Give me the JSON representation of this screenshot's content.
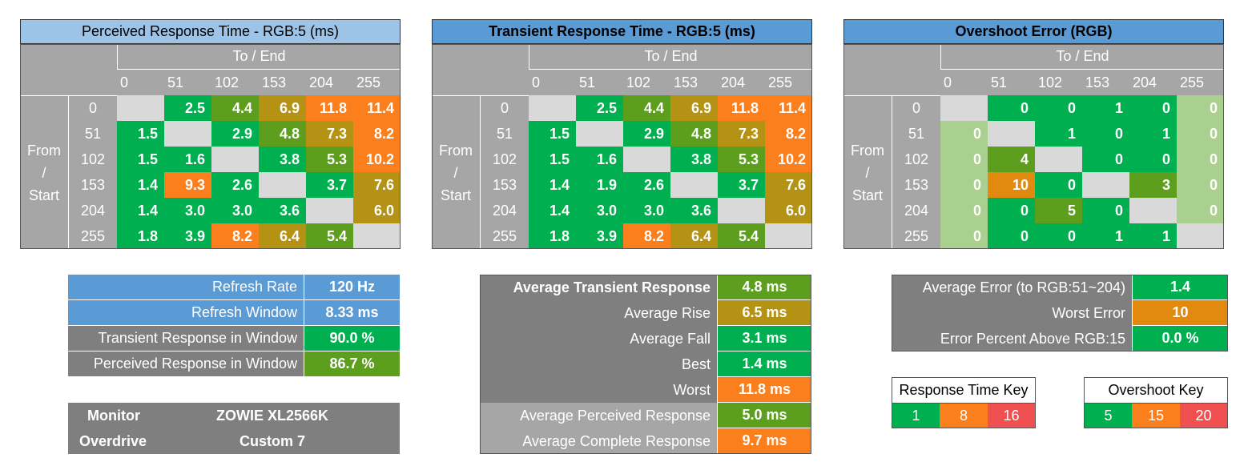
{
  "colors": {
    "green": "#00b050",
    "yellowgreen": "#5d9e1f",
    "olive": "#b39214",
    "orange": "#fb7f1c",
    "diag": "#d9d9d9",
    "light_green": "#a9d08e",
    "blue_light": "#9dc3e6",
    "blue": "#5b9bd5",
    "gray_header": "#a6a6a6",
    "gray_dark": "#7f7f7f",
    "red_key": "#f05050",
    "overshoot_orange": "#e28a10"
  },
  "tables": [
    {
      "title": "Perceived Response Time - RGB:5 (ms)",
      "title_bold": false,
      "title_bg": "#9dc3e6",
      "col_header": "To / End",
      "row_header": [
        "From",
        "/",
        "Start"
      ],
      "levels": [
        "0",
        "51",
        "102",
        "153",
        "204",
        "255"
      ],
      "cells": [
        [
          "",
          "2.5",
          "4.4",
          "6.9",
          "11.8",
          "11.4"
        ],
        [
          "1.5",
          "",
          "2.9",
          "4.8",
          "7.3",
          "8.2"
        ],
        [
          "1.5",
          "1.6",
          "",
          "3.8",
          "5.3",
          "10.2"
        ],
        [
          "1.4",
          "9.3",
          "2.6",
          "",
          "3.7",
          "7.6"
        ],
        [
          "1.4",
          "3.0",
          "3.0",
          "3.6",
          "",
          "6.0"
        ],
        [
          "1.8",
          "3.9",
          "8.2",
          "6.4",
          "5.4",
          ""
        ]
      ],
      "colors": [
        [
          "diag",
          "green",
          "yellowgreen",
          "olive",
          "orange",
          "orange"
        ],
        [
          "green",
          "diag",
          "green",
          "yellowgreen",
          "olive",
          "orange"
        ],
        [
          "green",
          "green",
          "diag",
          "green",
          "yellowgreen",
          "orange"
        ],
        [
          "green",
          "orange",
          "green",
          "diag",
          "green",
          "olive"
        ],
        [
          "green",
          "green",
          "green",
          "green",
          "diag",
          "olive"
        ],
        [
          "green",
          "green",
          "orange",
          "olive",
          "yellowgreen",
          "diag"
        ]
      ]
    },
    {
      "title": "Transient Response Time - RGB:5 (ms)",
      "title_bold": true,
      "title_bg": "#5b9bd5",
      "col_header": "To / End",
      "row_header": [
        "From",
        "/",
        "Start"
      ],
      "levels": [
        "0",
        "51",
        "102",
        "153",
        "204",
        "255"
      ],
      "cells": [
        [
          "",
          "2.5",
          "4.4",
          "6.9",
          "11.8",
          "11.4"
        ],
        [
          "1.5",
          "",
          "2.9",
          "4.8",
          "7.3",
          "8.2"
        ],
        [
          "1.5",
          "1.6",
          "",
          "3.8",
          "5.3",
          "10.2"
        ],
        [
          "1.4",
          "1.9",
          "2.6",
          "",
          "3.7",
          "7.6"
        ],
        [
          "1.4",
          "3.0",
          "3.0",
          "3.6",
          "",
          "6.0"
        ],
        [
          "1.8",
          "3.9",
          "8.2",
          "6.4",
          "5.4",
          ""
        ]
      ],
      "colors": [
        [
          "diag",
          "green",
          "yellowgreen",
          "olive",
          "orange",
          "orange"
        ],
        [
          "green",
          "diag",
          "green",
          "yellowgreen",
          "olive",
          "orange"
        ],
        [
          "green",
          "green",
          "diag",
          "green",
          "yellowgreen",
          "orange"
        ],
        [
          "green",
          "green",
          "green",
          "diag",
          "green",
          "olive"
        ],
        [
          "green",
          "green",
          "green",
          "green",
          "diag",
          "olive"
        ],
        [
          "green",
          "green",
          "orange",
          "olive",
          "yellowgreen",
          "diag"
        ]
      ]
    },
    {
      "title": "Overshoot Error (RGB)",
      "title_bold": true,
      "title_bg": "#5b9bd5",
      "col_header": "To / End",
      "row_header": [
        "From",
        "/",
        "Start"
      ],
      "levels": [
        "0",
        "51",
        "102",
        "153",
        "204",
        "255"
      ],
      "cells": [
        [
          "",
          "0",
          "0",
          "1",
          "0",
          "0"
        ],
        [
          "0",
          "",
          "1",
          "0",
          "1",
          "0"
        ],
        [
          "0",
          "4",
          "",
          "0",
          "0",
          "0"
        ],
        [
          "0",
          "10",
          "0",
          "",
          "3",
          "0"
        ],
        [
          "0",
          "0",
          "5",
          "0",
          "",
          "0"
        ],
        [
          "0",
          "0",
          "0",
          "1",
          "1",
          ""
        ]
      ],
      "colors": [
        [
          "diag",
          "green",
          "green",
          "green",
          "green",
          "light_green"
        ],
        [
          "light_green",
          "diag",
          "green",
          "green",
          "green",
          "light_green"
        ],
        [
          "light_green",
          "yellowgreen",
          "diag",
          "green",
          "green",
          "light_green"
        ],
        [
          "light_green",
          "overshoot_orange",
          "green",
          "diag",
          "yellowgreen",
          "light_green"
        ],
        [
          "light_green",
          "green",
          "yellowgreen",
          "green",
          "diag",
          "light_green"
        ],
        [
          "light_green",
          "green",
          "green",
          "green",
          "green",
          "diag"
        ]
      ]
    }
  ],
  "refresh_box": [
    {
      "label": "Refresh Rate",
      "value": "120 Hz",
      "label_bg": "#5b9bd5",
      "value_bg": "#5b9bd5"
    },
    {
      "label": "Refresh Window",
      "value": "8.33 ms",
      "label_bg": "#5b9bd5",
      "value_bg": "#5b9bd5"
    },
    {
      "label": "Transient Response in Window",
      "value": "90.0 %",
      "label_bg": "#7f7f7f",
      "value_bg": "#00b050"
    },
    {
      "label": "Perceived Response in Window",
      "value": "86.7 %",
      "label_bg": "#7f7f7f",
      "value_bg": "#5d9e1f"
    }
  ],
  "monitor_box": [
    {
      "label": "Monitor",
      "value": "ZOWIE XL2566K"
    },
    {
      "label": "Overdrive",
      "value": "Custom 7"
    }
  ],
  "avg_box": [
    {
      "label": "Average Transient Response",
      "value": "4.8 ms",
      "bold": true,
      "label_bg": "#7f7f7f",
      "value_bg": "#5d9e1f"
    },
    {
      "label": "Average Rise",
      "value": "6.5 ms",
      "bold": false,
      "label_bg": "#7f7f7f",
      "value_bg": "#b39214"
    },
    {
      "label": "Average Fall",
      "value": "3.1 ms",
      "bold": false,
      "label_bg": "#7f7f7f",
      "value_bg": "#00b050"
    },
    {
      "label": "Best",
      "value": "1.4 ms",
      "bold": false,
      "label_bg": "#7f7f7f",
      "value_bg": "#00b050"
    },
    {
      "label": "Worst",
      "value": "11.8 ms",
      "bold": false,
      "label_bg": "#7f7f7f",
      "value_bg": "#fb7f1c"
    },
    {
      "label": "Average Perceived Response",
      "value": "5.0 ms",
      "bold": false,
      "label_bg": "#a6a6a6",
      "value_bg": "#5d9e1f"
    },
    {
      "label": "Average Complete Response",
      "value": "9.7 ms",
      "bold": false,
      "label_bg": "#a6a6a6",
      "value_bg": "#fb7f1c"
    }
  ],
  "error_box": [
    {
      "label": "Average Error (to RGB:51~204)",
      "value": "1.4",
      "value_bg": "#00b050"
    },
    {
      "label": "Worst Error",
      "value": "10",
      "value_bg": "#e28a10"
    },
    {
      "label": "Error Percent Above RGB:15",
      "value": "0.0 %",
      "value_bg": "#00b050"
    }
  ],
  "response_key": {
    "title": "Response Time Key",
    "values": [
      "1",
      "8",
      "16"
    ],
    "colors": [
      "#00b050",
      "#fb7f1c",
      "#f05050"
    ]
  },
  "overshoot_key": {
    "title": "Overshoot Key",
    "values": [
      "5",
      "15",
      "20"
    ],
    "colors": [
      "#00b050",
      "#fb7f1c",
      "#f05050"
    ]
  },
  "chart_data": [
    {
      "type": "heatmap",
      "title": "Perceived Response Time - RGB:5 (ms)",
      "xlabel": "To / End",
      "ylabel": "From / Start",
      "x": [
        0,
        51,
        102,
        153,
        204,
        255
      ],
      "y": [
        0,
        51,
        102,
        153,
        204,
        255
      ],
      "values": [
        [
          null,
          2.5,
          4.4,
          6.9,
          11.8,
          11.4
        ],
        [
          1.5,
          null,
          2.9,
          4.8,
          7.3,
          8.2
        ],
        [
          1.5,
          1.6,
          null,
          3.8,
          5.3,
          10.2
        ],
        [
          1.4,
          9.3,
          2.6,
          null,
          3.7,
          7.6
        ],
        [
          1.4,
          3.0,
          3.0,
          3.6,
          null,
          6.0
        ],
        [
          1.8,
          3.9,
          8.2,
          6.4,
          5.4,
          null
        ]
      ]
    },
    {
      "type": "heatmap",
      "title": "Transient Response Time - RGB:5 (ms)",
      "xlabel": "To / End",
      "ylabel": "From / Start",
      "x": [
        0,
        51,
        102,
        153,
        204,
        255
      ],
      "y": [
        0,
        51,
        102,
        153,
        204,
        255
      ],
      "values": [
        [
          null,
          2.5,
          4.4,
          6.9,
          11.8,
          11.4
        ],
        [
          1.5,
          null,
          2.9,
          4.8,
          7.3,
          8.2
        ],
        [
          1.5,
          1.6,
          null,
          3.8,
          5.3,
          10.2
        ],
        [
          1.4,
          1.9,
          2.6,
          null,
          3.7,
          7.6
        ],
        [
          1.4,
          3.0,
          3.0,
          3.6,
          null,
          6.0
        ],
        [
          1.8,
          3.9,
          8.2,
          6.4,
          5.4,
          null
        ]
      ]
    },
    {
      "type": "heatmap",
      "title": "Overshoot Error (RGB)",
      "xlabel": "To / End",
      "ylabel": "From / Start",
      "x": [
        0,
        51,
        102,
        153,
        204,
        255
      ],
      "y": [
        0,
        51,
        102,
        153,
        204,
        255
      ],
      "values": [
        [
          null,
          0,
          0,
          1,
          0,
          0
        ],
        [
          0,
          null,
          1,
          0,
          1,
          0
        ],
        [
          0,
          4,
          null,
          0,
          0,
          0
        ],
        [
          0,
          10,
          0,
          null,
          3,
          0
        ],
        [
          0,
          0,
          5,
          0,
          null,
          0
        ],
        [
          0,
          0,
          0,
          1,
          1,
          null
        ]
      ]
    }
  ]
}
